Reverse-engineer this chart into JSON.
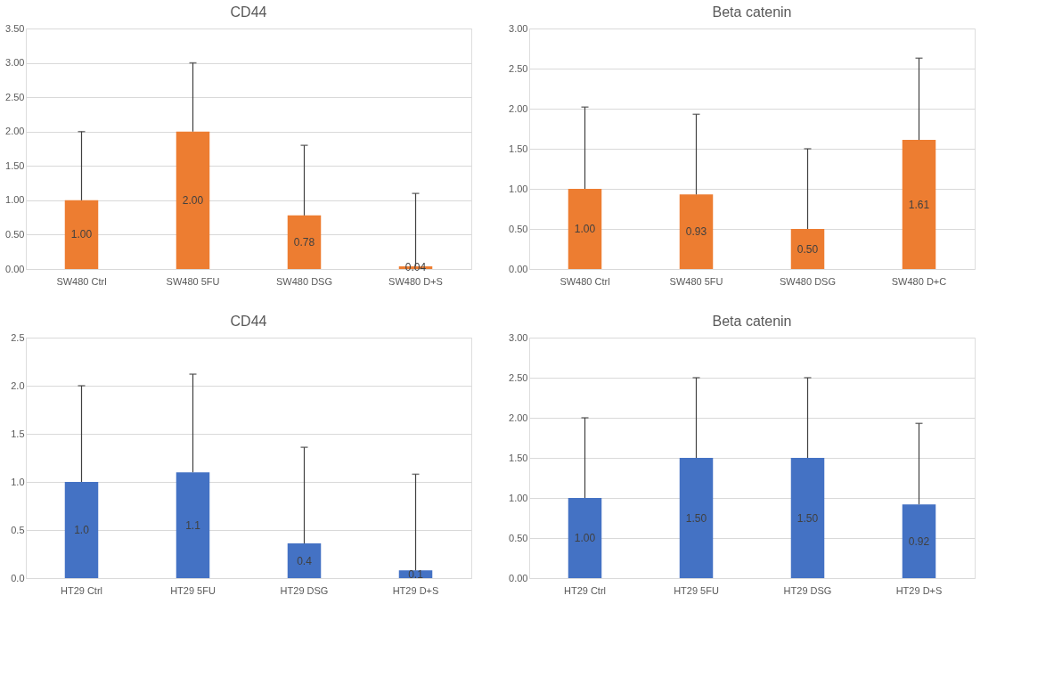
{
  "chart_data": [
    {
      "type": "bar",
      "title": "CD44",
      "categories": [
        "SW480 Ctrl",
        "SW480 5FU",
        "SW480 DSG",
        "SW480 D+S"
      ],
      "series": [
        {
          "color": "#ed7d31",
          "values": [
            1.0,
            2.0,
            0.78,
            0.04
          ],
          "errors": [
            [
              1.0,
              2.0
            ],
            [
              2.0,
              3.0
            ],
            [
              0.78,
              1.8
            ],
            [
              0.04,
              1.1
            ]
          ],
          "value_labels": [
            "1.00",
            "2.00",
            "0.78",
            "0.04"
          ]
        }
      ],
      "ylim": [
        0,
        3.5
      ],
      "yticks": [
        {
          "value": 0,
          "label": "0.00"
        },
        {
          "value": 0.5,
          "label": "0.50"
        },
        {
          "value": 1,
          "label": "1.00"
        },
        {
          "value": 1.5,
          "label": "1.50"
        },
        {
          "value": 2,
          "label": "2.00"
        },
        {
          "value": 2.5,
          "label": "2.50"
        },
        {
          "value": 3,
          "label": "3.00"
        },
        {
          "value": 3.5,
          "label": "3.50"
        }
      ],
      "grid": "y"
    },
    {
      "type": "bar",
      "title": "Beta catenin",
      "categories": [
        "SW480 Ctrl",
        "SW480 5FU",
        "SW480 DSG",
        "SW480 D+C"
      ],
      "series": [
        {
          "color": "#ed7d31",
          "values": [
            1.0,
            0.93,
            0.5,
            1.61
          ],
          "errors": [
            [
              1.0,
              2.02
            ],
            [
              0.93,
              1.93
            ],
            [
              0.5,
              1.5
            ],
            [
              1.61,
              2.63
            ]
          ],
          "value_labels": [
            "1.00",
            "0.93",
            "0.50",
            "1.61"
          ]
        }
      ],
      "ylim": [
        0,
        3
      ],
      "yticks": [
        {
          "value": 0,
          "label": "0.00"
        },
        {
          "value": 0.5,
          "label": "0.50"
        },
        {
          "value": 1,
          "label": "1.00"
        },
        {
          "value": 1.5,
          "label": "1.50"
        },
        {
          "value": 2,
          "label": "2.00"
        },
        {
          "value": 2.5,
          "label": "2.50"
        },
        {
          "value": 3,
          "label": "3.00"
        }
      ],
      "grid": "y"
    },
    {
      "type": "bar",
      "title": "CD44",
      "categories": [
        "HT29 Ctrl",
        "HT29 5FU",
        "HT29 DSG",
        "HT29 D+S"
      ],
      "series": [
        {
          "color": "#4472c4",
          "values": [
            1.0,
            1.1,
            0.36,
            0.08
          ],
          "errors": [
            [
              1.0,
              2.0
            ],
            [
              1.1,
              2.12
            ],
            [
              0.36,
              1.36
            ],
            [
              0.08,
              1.08
            ]
          ],
          "value_labels": [
            "1.0",
            "1.1",
            "0.4",
            "0.1"
          ]
        }
      ],
      "ylim": [
        0,
        2.5
      ],
      "yticks": [
        {
          "value": 0,
          "label": "0.0"
        },
        {
          "value": 0.5,
          "label": "0.5"
        },
        {
          "value": 1,
          "label": "1.0"
        },
        {
          "value": 1.5,
          "label": "1.5"
        },
        {
          "value": 2,
          "label": "2.0"
        },
        {
          "value": 2.5,
          "label": "2.5"
        }
      ],
      "grid": "y"
    },
    {
      "type": "bar",
      "title": "Beta catenin",
      "categories": [
        "HT29 Ctrl",
        "HT29 5FU",
        "HT29 DSG",
        "HT29 D+S"
      ],
      "series": [
        {
          "color": "#4472c4",
          "values": [
            1.0,
            1.5,
            1.5,
            0.92
          ],
          "errors": [
            [
              1.0,
              2.0
            ],
            [
              1.5,
              2.5
            ],
            [
              1.5,
              2.5
            ],
            [
              0.92,
              1.93
            ]
          ],
          "value_labels": [
            "1.00",
            "1.50",
            "1.50",
            "0.92"
          ]
        }
      ],
      "ylim": [
        0,
        3
      ],
      "yticks": [
        {
          "value": 0,
          "label": "0.00"
        },
        {
          "value": 0.5,
          "label": "0.50"
        },
        {
          "value": 1,
          "label": "1.00"
        },
        {
          "value": 1.5,
          "label": "1.50"
        },
        {
          "value": 2,
          "label": "2.00"
        },
        {
          "value": 2.5,
          "label": "2.50"
        },
        {
          "value": 3,
          "label": "3.00"
        }
      ],
      "grid": "y"
    }
  ]
}
